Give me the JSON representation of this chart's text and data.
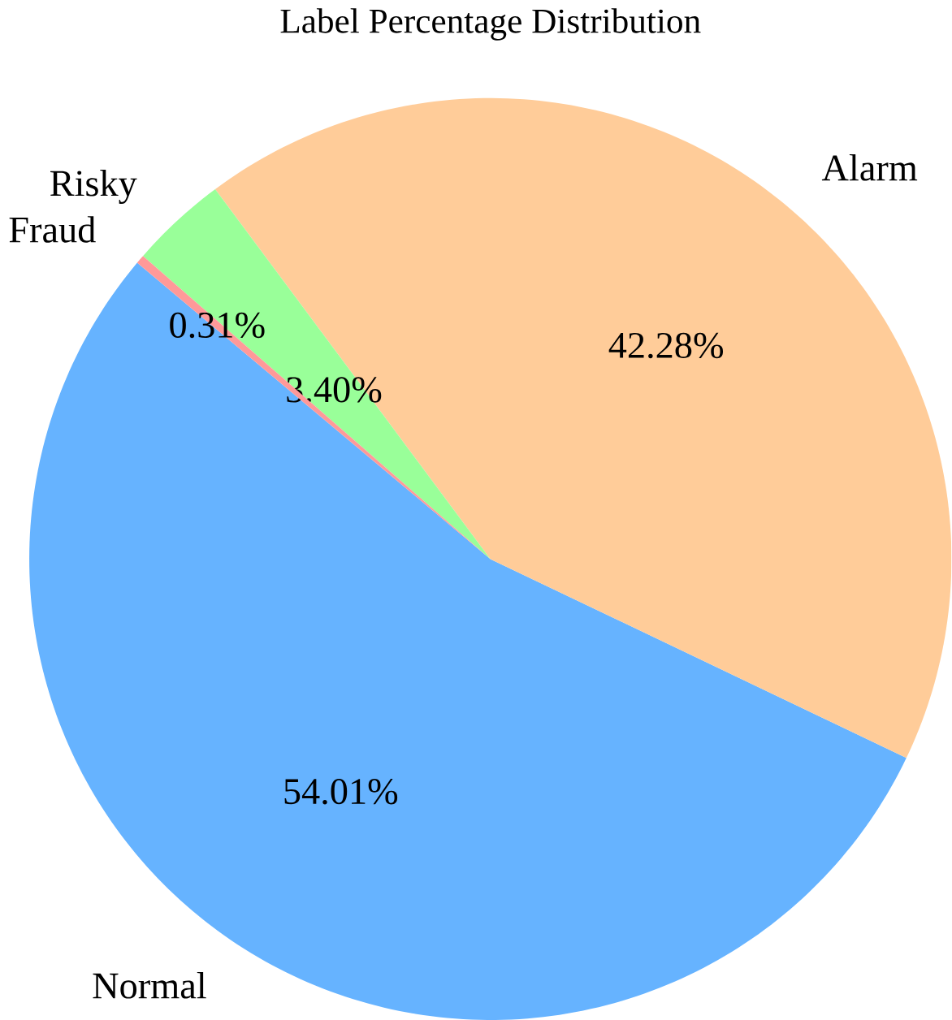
{
  "chart_data": {
    "type": "pie",
    "title": "Label Percentage Distribution",
    "categories": [
      "Normal",
      "Alarm",
      "Risky",
      "Fraud"
    ],
    "values": [
      54.01,
      42.28,
      3.4,
      0.31
    ],
    "value_labels": [
      "54.01%",
      "42.28%",
      "3.40%",
      "0.31%"
    ],
    "colors": [
      "#66b3ff",
      "#ffcc99",
      "#99ff99",
      "#ff9999"
    ]
  }
}
